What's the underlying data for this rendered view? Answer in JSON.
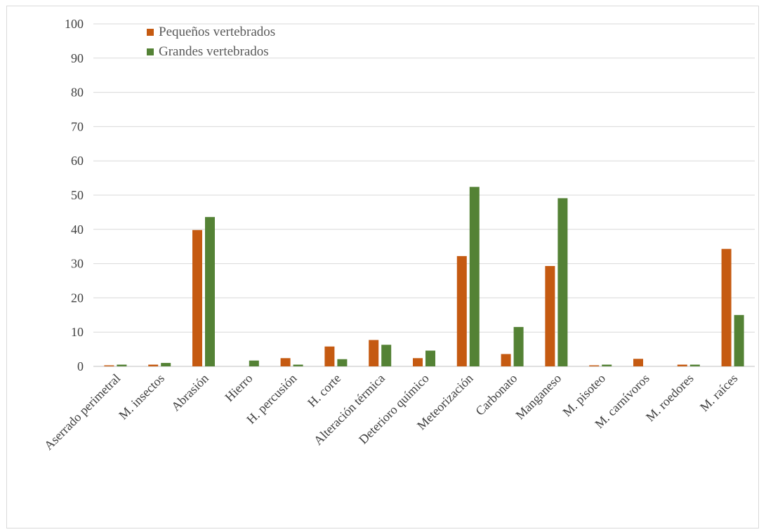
{
  "chart_data": {
    "type": "bar",
    "title": "",
    "xlabel": "",
    "ylabel": "",
    "ylim": [
      0,
      100
    ],
    "yticks": [
      0,
      10,
      20,
      30,
      40,
      50,
      60,
      70,
      80,
      90,
      100
    ],
    "grid": true,
    "legend_position": "top-left",
    "categories": [
      "Aserrado perimetral",
      "M. insectos",
      "Abrasión",
      "Hierro",
      "H. percusión",
      "H. corte",
      "Alteración térmica",
      "Deterioro químico",
      "Meteorización",
      "Carbonato",
      "Manganeso",
      "M. pisoteo",
      "M. carnívoros",
      "M. roedores",
      "M. raíces"
    ],
    "series": [
      {
        "name": "Pequeños vertebrados",
        "color": "#c55a11",
        "values": [
          0.3,
          0.5,
          39.8,
          0,
          2.4,
          5.8,
          7.7,
          2.4,
          32.2,
          3.6,
          29.3,
          0.3,
          2.2,
          0.5,
          34.3
        ]
      },
      {
        "name": "Grandes vertebrados",
        "color": "#548235",
        "values": [
          0.5,
          1.0,
          43.6,
          1.7,
          0.5,
          2.1,
          6.3,
          4.6,
          52.4,
          11.5,
          49.1,
          0.5,
          0,
          0.5,
          15.0
        ]
      }
    ]
  }
}
